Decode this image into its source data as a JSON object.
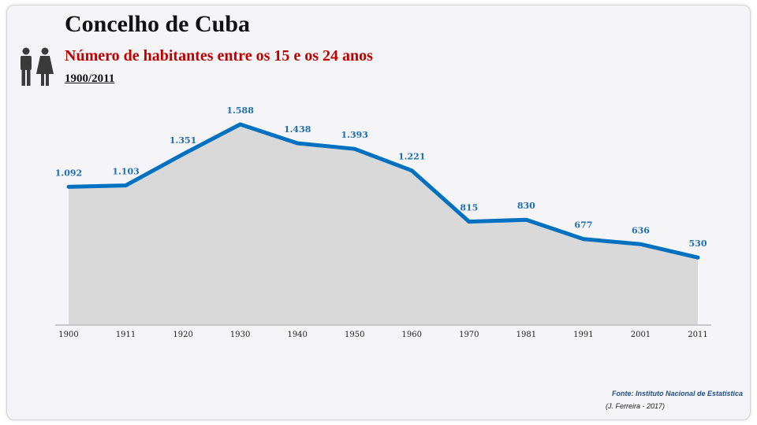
{
  "header": {
    "title": "Concelho de Cuba",
    "subtitle": "Número de habitantes entre os 15 e os 24 anos",
    "period": "1900/2011",
    "icon": "people-icon"
  },
  "footer": {
    "source": "Fonte: Instituto Nacional de Estatística",
    "author": "(J. Ferreira - 2017)"
  },
  "colors": {
    "line": "#0070c0",
    "area": "#d9d9d9",
    "label": "#1f6fb5",
    "subtitle": "#c00000"
  },
  "chart_data": {
    "type": "area",
    "categories": [
      "1900",
      "1911",
      "1920",
      "1930",
      "1940",
      "1950",
      "1960",
      "1970",
      "1981",
      "1991",
      "2001",
      "2011"
    ],
    "x": [
      1900,
      1911,
      1920,
      1930,
      1940,
      1950,
      1960,
      1970,
      1981,
      1991,
      2001,
      2011
    ],
    "values": [
      1092,
      1103,
      1351,
      1588,
      1438,
      1393,
      1221,
      815,
      830,
      677,
      636,
      530
    ],
    "value_labels": [
      "1.092",
      "1.103",
      "1.351",
      "1.588",
      "1.438",
      "1.393",
      "1.221",
      "815",
      "830",
      "677",
      "636",
      "530"
    ],
    "ylim": [
      0,
      1800
    ],
    "grid": false,
    "legend": "none"
  }
}
